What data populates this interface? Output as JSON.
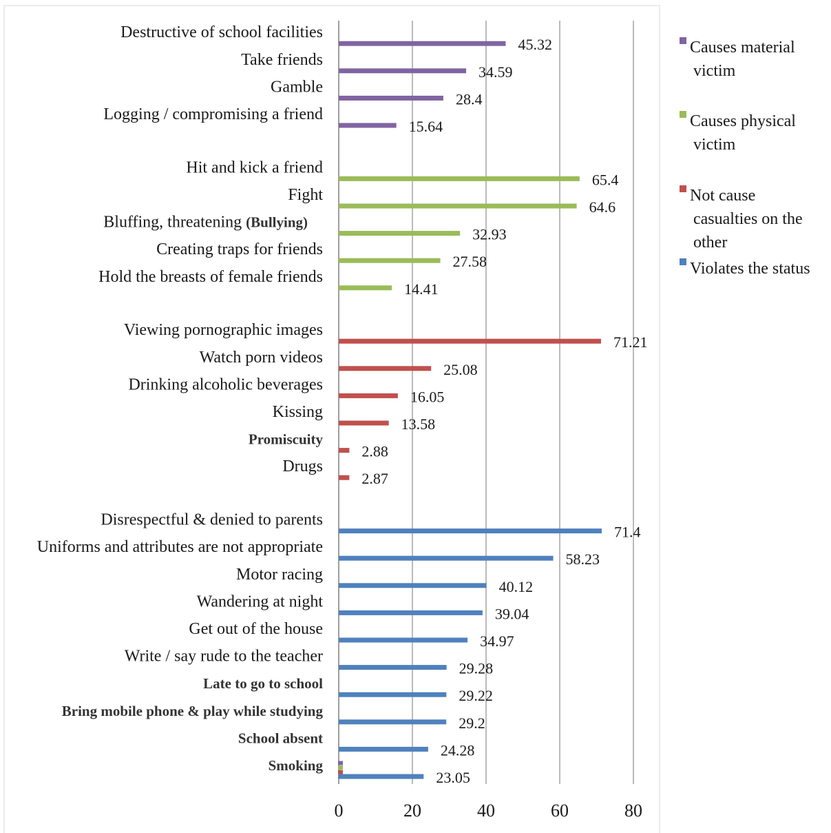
{
  "chart_data": {
    "type": "bar",
    "orientation": "horizontal",
    "title": "",
    "xlabel": "",
    "ylabel": "",
    "xlim": [
      0,
      80
    ],
    "x_ticks": [
      "0",
      "20",
      "40",
      "60",
      "80"
    ],
    "grid": "vertical",
    "legend_position": "right",
    "series": [
      {
        "name": "Causes material victim",
        "legend_lines": [
          "Causes material",
          "victim"
        ],
        "color": "#8064a2",
        "categories": [
          "Destructive of school facilities",
          "Take friends",
          "Gamble",
          "Logging / compromising a friend"
        ],
        "values": [
          45.32,
          34.59,
          28.4,
          15.64
        ],
        "value_labels": [
          "45.32",
          "34.59",
          "28.4",
          "15.64"
        ],
        "bold": [
          false,
          false,
          false,
          false
        ]
      },
      {
        "name": "Causes physical victim",
        "legend_lines": [
          "Causes physical",
          "victim"
        ],
        "color": "#9bbb59",
        "categories": [
          "Hit and kick a friend",
          "Fight",
          "Bluffing, threatening",
          "Creating traps for friends",
          "Hold the breasts of female friends"
        ],
        "values": [
          65.4,
          64.6,
          32.93,
          27.58,
          14.41
        ],
        "value_labels": [
          "65.4",
          "64.6",
          "32.93",
          "27.58",
          "14.41"
        ],
        "bold": [
          false,
          false,
          false,
          false,
          false
        ],
        "suffixes": [
          "",
          "",
          "(Bullying)",
          "",
          ""
        ]
      },
      {
        "name": "Not cause casualties on the other",
        "legend_lines": [
          "Not cause",
          "casualties on the",
          "other"
        ],
        "color": "#c0504d",
        "categories": [
          "Viewing pornographic images",
          "Watch porn videos",
          "Drinking alcoholic beverages",
          "Kissing",
          "Promiscuity",
          "Drugs"
        ],
        "values": [
          71.21,
          25.08,
          16.05,
          13.58,
          2.88,
          2.87
        ],
        "value_labels": [
          "71.21",
          "25.08",
          "16.05",
          "13.58",
          "2.88",
          "2.87"
        ],
        "bold": [
          false,
          false,
          false,
          false,
          true,
          false
        ]
      },
      {
        "name": "Violates the status",
        "legend_lines": [
          "Violates the status"
        ],
        "color": "#4f81bd",
        "categories": [
          "Disrespectful & denied to parents",
          "Uniforms and attributes are not appropriate",
          "Motor racing",
          "Wandering at night",
          "Get out of the house",
          "Write / say rude to the teacher",
          "Late to go to school",
          "Bring mobile phone & play while studying",
          "School absent",
          "Smoking"
        ],
        "values": [
          71.4,
          58.23,
          40.12,
          39.04,
          34.97,
          29.28,
          29.22,
          29.2,
          24.28,
          23.05
        ],
        "value_labels": [
          "71.4",
          "58.23",
          "40.12",
          "39.04",
          "34.97",
          "29.28",
          "29.22",
          "29.2",
          "24.28",
          "23.05"
        ],
        "bold": [
          false,
          false,
          false,
          false,
          false,
          false,
          true,
          true,
          true,
          true
        ]
      }
    ]
  }
}
